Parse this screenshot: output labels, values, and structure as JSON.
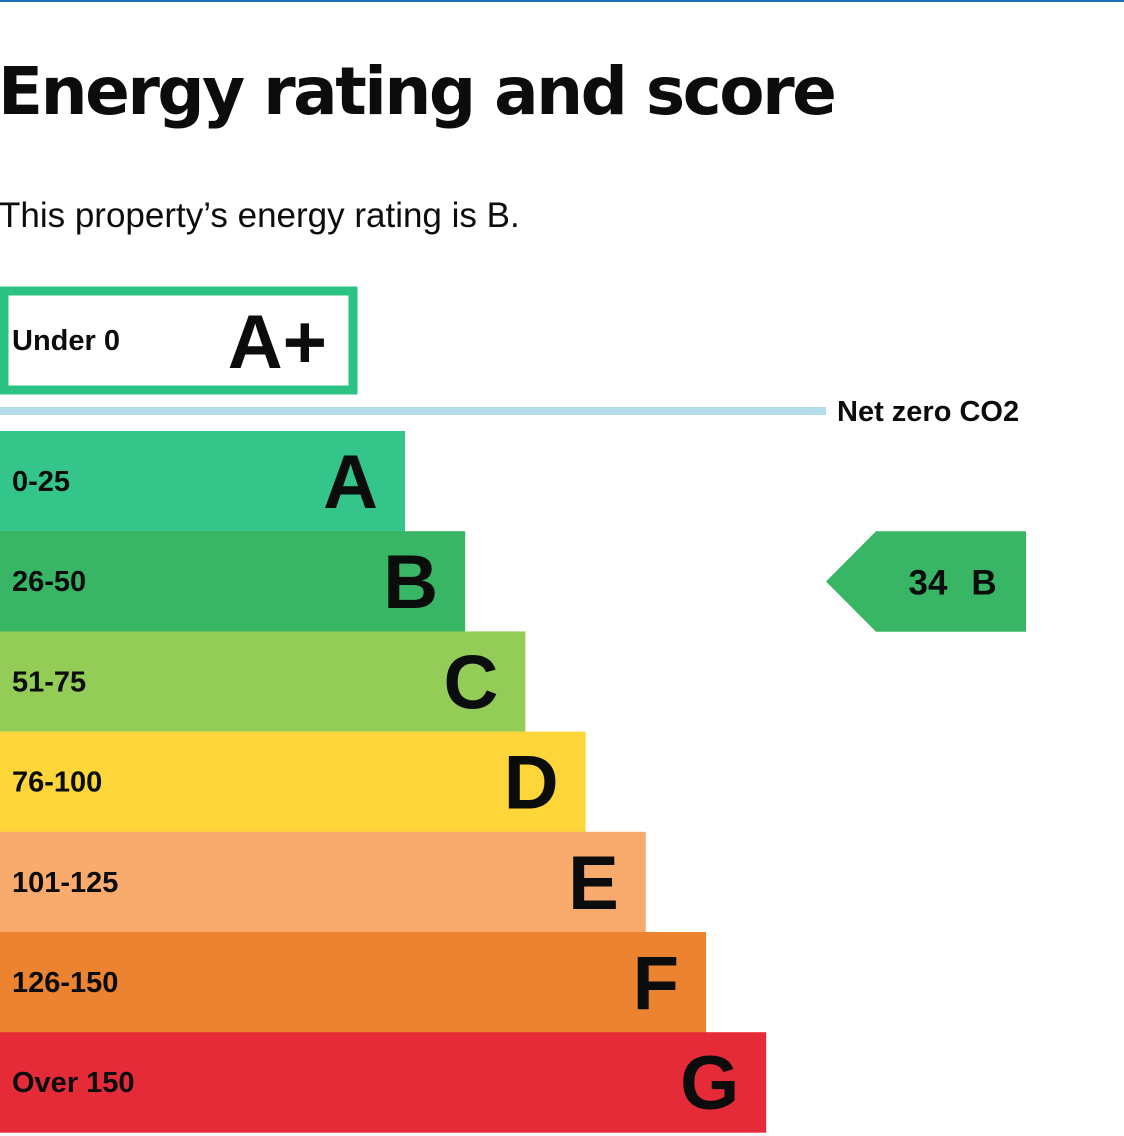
{
  "page": {
    "title": "Energy rating and score",
    "summary": "This property’s energy rating is B."
  },
  "chart_data": {
    "type": "bar",
    "bands": [
      {
        "letter": "A+",
        "range": "Under 0",
        "color": "#2ac383",
        "outlined": true
      },
      {
        "letter": "A",
        "range": "0-25",
        "color": "#33c58a"
      },
      {
        "letter": "B",
        "range": "26-50",
        "color": "#38b565"
      },
      {
        "letter": "C",
        "range": "51-75",
        "color": "#93cd58"
      },
      {
        "letter": "D",
        "range": "76-100",
        "color": "#fed639"
      },
      {
        "letter": "E",
        "range": "101-125",
        "color": "#f9ab6d"
      },
      {
        "letter": "F",
        "range": "126-150",
        "color": "#ec8330"
      },
      {
        "letter": "G",
        "range": "Over 150",
        "color": "#e52a38"
      }
    ],
    "net_zero_label": "Net zero CO2",
    "net_zero_line_color": "#b4dce9",
    "current": {
      "score": 34,
      "score_label": "34",
      "band": "B",
      "color": "#38b565"
    }
  }
}
